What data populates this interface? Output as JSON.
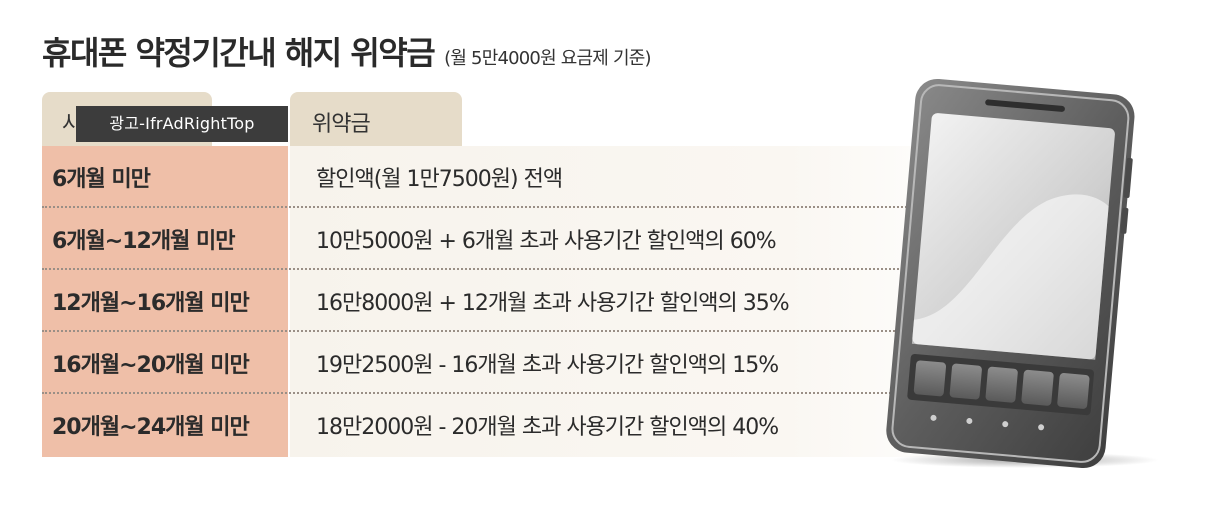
{
  "title": {
    "main": "휴대폰 약정기간내 해지 위약금",
    "sub": "(월 5만4000원 요금제 기준)"
  },
  "table": {
    "headers": {
      "period": "사용기간",
      "penalty": "위약금"
    },
    "rows": [
      {
        "period": "6개월 미만",
        "penalty": "할인액(월 1만7500원) 전액"
      },
      {
        "period": "6개월~12개월 미만",
        "penalty": "10만5000원 + 6개월 초과 사용기간 할인액의 60%"
      },
      {
        "period": "12개월~16개월 미만",
        "penalty": "16만8000원 + 12개월 초과 사용기간 할인액의 35%"
      },
      {
        "period": "16개월~20개월 미만",
        "penalty": "19만2500원 - 16개월 초과 사용기간 할인액의 15%"
      },
      {
        "period": "20개월~24개월 미만",
        "penalty": "18만2000원 - 20개월 초과 사용기간 할인액의 40%"
      }
    ]
  },
  "ad_badge": {
    "label": "광고-IfrAdRightTop"
  },
  "colors": {
    "period_column": "#efbfa8",
    "header_tab": "#e6dcc9",
    "penalty_column": "#f7f3ec",
    "ad_badge": "#3c3c3c"
  },
  "icons": {
    "phone": "smartphone-illustration"
  }
}
